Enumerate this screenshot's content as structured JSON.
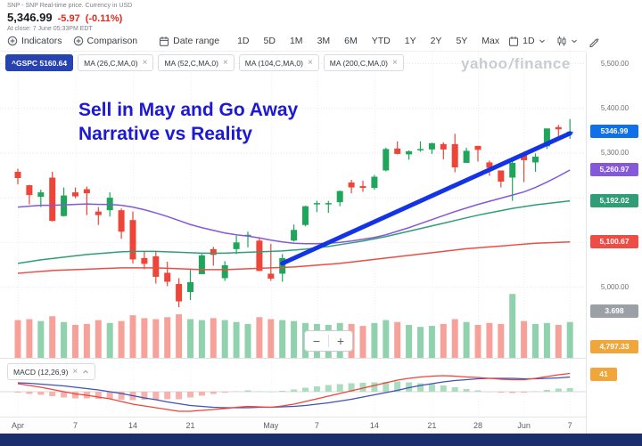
{
  "header": {
    "meta": "SNP - SNP Real-time price. Currency in USD",
    "price": "5,346.99",
    "change": "-5.97",
    "change_pct": "(-0.11%)",
    "close_info": "At close: 7 June 05:33PM EDT"
  },
  "toolbar": {
    "indicators": "Indicators",
    "comparison": "Comparison",
    "date_range": "Date range",
    "ranges": [
      "1D",
      "5D",
      "1M",
      "3M",
      "6M",
      "YTD",
      "1Y",
      "2Y",
      "5Y",
      "Max"
    ],
    "interval": "1D"
  },
  "legend": {
    "symbol_chip": "^GSPC 5160.64",
    "ma_chips": [
      "MA (26,C,MA,0)",
      "MA (52,C,MA,0)",
      "MA (104,C,MA,0)",
      "MA (200,C,MA,0)"
    ]
  },
  "macd_chip": {
    "label": "MACD (12,26,9)"
  },
  "watermark": {
    "part1": "yahoo",
    "slash": "/",
    "part2": "finance"
  },
  "annotation": {
    "line1": "Sell in May and Go Away",
    "line2": "Narrative vs Reality",
    "color": "#1b18d8"
  },
  "zoom": {
    "minus": "−",
    "plus": "+"
  },
  "colors": {
    "negative": "#de2b1e",
    "up": "#1fa65b",
    "down": "#ef4438",
    "vol_up": "rgba(31,166,91,0.5)",
    "vol_down": "rgba(239,68,56,0.5)",
    "hist_up": "#aadcbe",
    "hist_down": "#f6b3ae",
    "macd_line": "#ef4438",
    "signal_line": "#3f51b5",
    "symbol_chip": "#2743b0",
    "scrollbar": "#1b2e6e",
    "watermark": "#c9cdd2"
  },
  "axis": {
    "price_ticks": [
      {
        "label": "5,500.00",
        "price": 5500
      },
      {
        "label": "5,400.00",
        "price": 5400
      },
      {
        "label": "5,300.00",
        "price": 5300
      },
      {
        "label": "5,200.00",
        "price": 5200
      },
      {
        "label": "5,100.00",
        "price": 5100
      },
      {
        "label": "5,000.00",
        "price": 5000
      }
    ],
    "badges": [
      {
        "label": "5346.99",
        "color": "#1070e8",
        "price": 5346.99
      },
      {
        "label": "5,260.97",
        "color": "#8458d8",
        "price": 5260.97
      },
      {
        "label": "5,192.02",
        "color": "#2f9e77",
        "price": 5192.02
      },
      {
        "label": "5,100.67",
        "color": "#ee4d45",
        "price": 5100.67
      },
      {
        "label": "3.698",
        "color": "#9aa0a6",
        "kind": "volume"
      },
      {
        "label": "4,797.33",
        "color": "#f0a63a",
        "kind": "clamped-bottom"
      }
    ],
    "macd_badge": {
      "label": "41",
      "color": "#f0a63a"
    },
    "x_ticks": [
      {
        "label": "Apr",
        "i": 0
      },
      {
        "label": "7",
        "i": 5
      },
      {
        "label": "14",
        "i": 10
      },
      {
        "label": "21",
        "i": 15
      },
      {
        "label": "May",
        "i": 22
      },
      {
        "label": "7",
        "i": 26
      },
      {
        "label": "14",
        "i": 31
      },
      {
        "label": "21",
        "i": 36
      },
      {
        "label": "28",
        "i": 40
      },
      {
        "label": "Jun",
        "i": 44
      },
      {
        "label": "7",
        "i": 48
      }
    ]
  },
  "chart_data": {
    "type": "candlestick",
    "title": "^GSPC daily candles, April–June, with MA(26/52/104) overlays, volume, drawn trendline and MACD(12,26,9)",
    "ylim": [
      4940,
      5520
    ],
    "volume_max": 6.8,
    "candles": [
      [
        5257,
        5264,
        5229,
        5243
      ],
      [
        5227,
        5228,
        5184,
        5205
      ],
      [
        5201,
        5217,
        5178,
        5211
      ],
      [
        5244,
        5257,
        5146,
        5147
      ],
      [
        5158,
        5222,
        5157,
        5204
      ],
      [
        5211,
        5222,
        5198,
        5202
      ],
      [
        5218,
        5224,
        5160,
        5209
      ],
      [
        5168,
        5178,
        5138,
        5160
      ],
      [
        5171,
        5211,
        5157,
        5199
      ],
      [
        5171,
        5175,
        5107,
        5123
      ],
      [
        5149,
        5168,
        5052,
        5061
      ],
      [
        5064,
        5080,
        5039,
        5051
      ],
      [
        5068,
        5078,
        5007,
        5022
      ],
      [
        5031,
        5056,
        5001,
        5011
      ],
      [
        5006,
        5019,
        4954,
        4967
      ],
      [
        4988,
        5039,
        4970,
        5010
      ],
      [
        5028,
        5073,
        5028,
        5070
      ],
      [
        5084,
        5089,
        5047,
        5071
      ],
      [
        5019,
        5057,
        5013,
        5048
      ],
      [
        5084,
        5114,
        5073,
        5099
      ],
      [
        5114,
        5123,
        5088,
        5116
      ],
      [
        5103,
        5110,
        5035,
        5035
      ],
      [
        5029,
        5096,
        5013,
        5018
      ],
      [
        5029,
        5073,
        5011,
        5064
      ],
      [
        5103,
        5139,
        5101,
        5127
      ],
      [
        5138,
        5181,
        5135,
        5180
      ],
      [
        5187,
        5192,
        5167,
        5187
      ],
      [
        5184,
        5192,
        5165,
        5187
      ],
      [
        5189,
        5215,
        5180,
        5214
      ],
      [
        5233,
        5239,
        5209,
        5222
      ],
      [
        5225,
        5237,
        5212,
        5221
      ],
      [
        5221,
        5250,
        5217,
        5246
      ],
      [
        5260,
        5311,
        5258,
        5308
      ],
      [
        5309,
        5325,
        5296,
        5297
      ],
      [
        5296,
        5305,
        5284,
        5303
      ],
      [
        5305,
        5325,
        5302,
        5308
      ],
      [
        5307,
        5322,
        5297,
        5321
      ],
      [
        5319,
        5323,
        5285,
        5307
      ],
      [
        5319,
        5342,
        5256,
        5267
      ],
      [
        5277,
        5311,
        5277,
        5304
      ],
      [
        5315,
        5315,
        5280,
        5306
      ],
      [
        5278,
        5282,
        5248,
        5266
      ],
      [
        5260,
        5260,
        5222,
        5235
      ],
      [
        5244,
        5280,
        5192,
        5277
      ],
      [
        5297,
        5302,
        5234,
        5283
      ],
      [
        5278,
        5298,
        5257,
        5291
      ],
      [
        5314,
        5354,
        5308,
        5354
      ],
      [
        5357,
        5362,
        5335,
        5352
      ],
      [
        5343,
        5375,
        5331,
        5347
      ]
    ],
    "volumes": [
      3.9,
      4.0,
      3.8,
      4.3,
      3.7,
      3.4,
      3.5,
      3.9,
      3.6,
      3.8,
      4.4,
      4.1,
      4.0,
      4.2,
      4.5,
      4.0,
      3.9,
      4.1,
      3.9,
      3.7,
      3.5,
      4.2,
      4.0,
      3.9,
      3.8,
      3.6,
      3.5,
      3.4,
      3.6,
      3.5,
      3.3,
      3.6,
      3.9,
      3.7,
      3.4,
      3.2,
      3.3,
      3.5,
      4.0,
      3.7,
      3.4,
      3.6,
      3.5,
      6.6,
      3.8,
      3.5,
      3.6,
      3.4,
      3.7
    ],
    "series": [
      {
        "name": "MA26",
        "color": "#8458d8",
        "values": [
          5178,
          5180,
          5182,
          5182,
          5183,
          5184,
          5185,
          5184,
          5184,
          5182,
          5178,
          5172,
          5165,
          5157,
          5148,
          5139,
          5132,
          5126,
          5120,
          5116,
          5113,
          5109,
          5104,
          5100,
          5097,
          5096,
          5096,
          5097,
          5099,
          5102,
          5106,
          5110,
          5116,
          5124,
          5132,
          5141,
          5150,
          5159,
          5168,
          5176,
          5184,
          5191,
          5198,
          5205,
          5212,
          5222,
          5234,
          5247,
          5261
        ]
      },
      {
        "name": "MA52",
        "color": "#2f9e77",
        "values": [
          5052,
          5056,
          5060,
          5063,
          5066,
          5069,
          5072,
          5074,
          5076,
          5078,
          5079,
          5079,
          5079,
          5078,
          5077,
          5076,
          5075,
          5075,
          5075,
          5076,
          5077,
          5078,
          5079,
          5080,
          5082,
          5084,
          5087,
          5090,
          5094,
          5098,
          5102,
          5107,
          5112,
          5118,
          5124,
          5130,
          5136,
          5142,
          5148,
          5154,
          5160,
          5165,
          5170,
          5175,
          5179,
          5183,
          5186,
          5189,
          5192
        ]
      },
      {
        "name": "MA104",
        "color": "#ee4d45",
        "values": [
          5030,
          5032,
          5034,
          5036,
          5037,
          5038,
          5039,
          5040,
          5041,
          5042,
          5042,
          5042,
          5042,
          5041,
          5040,
          5039,
          5038,
          5038,
          5038,
          5039,
          5040,
          5041,
          5042,
          5043,
          5044,
          5046,
          5048,
          5050,
          5052,
          5055,
          5058,
          5061,
          5064,
          5067,
          5070,
          5073,
          5076,
          5079,
          5082,
          5085,
          5087,
          5089,
          5091,
          5093,
          5095,
          5097,
          5098,
          5099,
          5100
        ]
      }
    ],
    "trendline": {
      "from_index": 23,
      "from_price": 5052,
      "to_index": 48,
      "to_price": 5343,
      "color": "#1233e6",
      "width": 5
    },
    "macd": {
      "macd": [
        18,
        14,
        10,
        5,
        0,
        -5,
        -8,
        -12,
        -16,
        -22,
        -28,
        -32,
        -36,
        -40,
        -44,
        -44,
        -42,
        -40,
        -38,
        -35,
        -33,
        -34,
        -35,
        -32,
        -28,
        -22,
        -16,
        -10,
        -4,
        2,
        8,
        14,
        20,
        26,
        30,
        33,
        35,
        36,
        35,
        33,
        32,
        30,
        28,
        27,
        27,
        30,
        34,
        38,
        41
      ],
      "signal": [
        20,
        19,
        17,
        15,
        13,
        10,
        7,
        4,
        0,
        -4,
        -9,
        -14,
        -18,
        -23,
        -27,
        -31,
        -33,
        -35,
        -36,
        -36,
        -36,
        -35,
        -35,
        -34,
        -33,
        -31,
        -28,
        -25,
        -21,
        -17,
        -12,
        -7,
        -2,
        3,
        9,
        14,
        18,
        22,
        25,
        27,
        29,
        30,
        30,
        30,
        29,
        29,
        30,
        31,
        33
      ]
    }
  }
}
